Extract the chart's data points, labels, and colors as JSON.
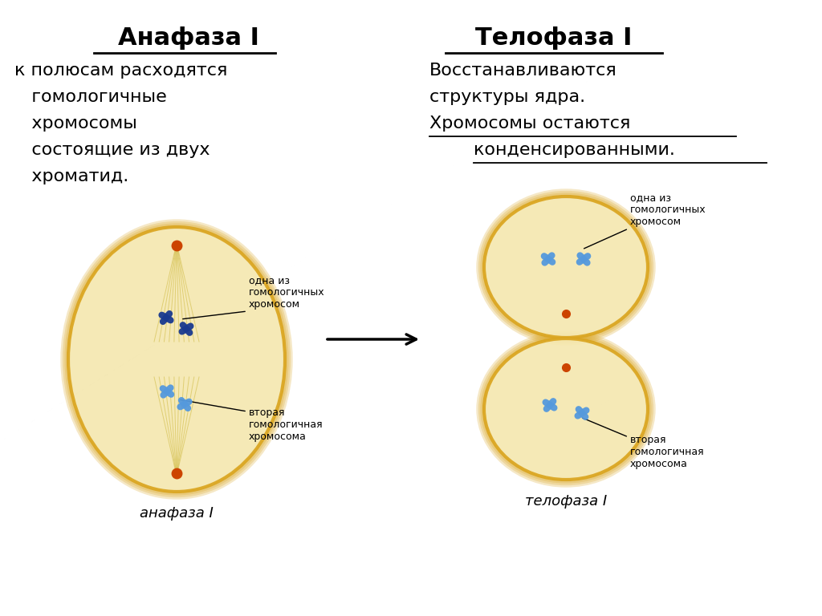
{
  "title_left": "Анафаза I",
  "title_right": "Телофаза I",
  "desc_left_lines": [
    "к полюсам расходятся",
    "   гомологичные",
    "   хромосомы",
    "   состоящие из двух",
    "   хроматид."
  ],
  "desc_right_line1": "Восстанавливаются",
  "desc_right_line2": "структуры ядра.",
  "desc_right_line3": "Хромосомы остаются",
  "desc_right_line4": "   конденсированными.",
  "label_anaphase": "анафаза I",
  "label_telophase": "телофаза I",
  "label_homolog1_left": "одна из\nгомологичных\nхромосом",
  "label_homolog2_left": "вторая\nгомологичная\nхромосома",
  "label_homolog1_right": "одна из\nгомологичных\nхромосом",
  "label_homolog2_right": "вторая\nгомологичная\nхромосома",
  "bg_color": "#ffffff",
  "cell_outer_color": "#DAA520",
  "cell_inner_color": "#F0D080",
  "cell_inner_color2": "#F5E8B0",
  "chrom_color_dark": "#1a3a8f",
  "chrom_color_light": "#5599dd",
  "centromere_color": "#cc4400",
  "spindle_color": "#d4c050",
  "title_fontsize": 22,
  "desc_fontsize": 16,
  "label_fontsize": 9,
  "italic_label_fontsize": 13
}
